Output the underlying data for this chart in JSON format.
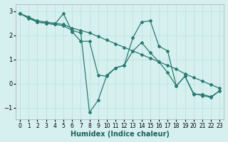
{
  "xlabel": "Humidex (Indice chaleur)",
  "bg_color": "#d6f0f0",
  "grid_color": "#b8dede",
  "line_color": "#2a7a70",
  "ylim": [
    -1.5,
    3.3
  ],
  "xlim": [
    -0.5,
    23.5
  ],
  "yticks": [
    -1,
    0,
    1,
    2,
    3
  ],
  "xticks": [
    0,
    1,
    2,
    3,
    4,
    5,
    6,
    7,
    8,
    9,
    10,
    11,
    12,
    13,
    14,
    15,
    16,
    17,
    18,
    19,
    20,
    21,
    22,
    23
  ],
  "series1_x": [
    0,
    1,
    2,
    3,
    4,
    5,
    6,
    7,
    8,
    9,
    10,
    11,
    12,
    13,
    14,
    15,
    16,
    17,
    18,
    19,
    20,
    21,
    22,
    23
  ],
  "series1_y": [
    2.9,
    2.75,
    2.6,
    2.55,
    2.5,
    2.45,
    2.3,
    2.2,
    2.1,
    1.95,
    1.8,
    1.65,
    1.5,
    1.35,
    1.2,
    1.05,
    0.9,
    0.75,
    0.6,
    0.4,
    0.25,
    0.1,
    -0.05,
    -0.2
  ],
  "series2_x": [
    0,
    1,
    2,
    3,
    4,
    5,
    6,
    7,
    8,
    9,
    10,
    11,
    12,
    13,
    14,
    15,
    16,
    17,
    18,
    19,
    20,
    21,
    22,
    23
  ],
  "series2_y": [
    2.9,
    2.75,
    2.55,
    2.5,
    2.45,
    2.9,
    2.15,
    1.75,
    1.75,
    0.35,
    0.3,
    0.65,
    0.75,
    1.9,
    2.55,
    2.6,
    1.55,
    1.35,
    -0.1,
    0.3,
    -0.45,
    -0.45,
    -0.55,
    -0.3
  ],
  "series3_x": [
    0,
    1,
    2,
    3,
    4,
    5,
    6,
    7,
    8,
    9,
    10,
    11,
    12,
    13,
    14,
    15,
    16,
    17,
    18,
    19,
    20,
    21,
    22,
    23
  ],
  "series3_y": [
    2.9,
    2.7,
    2.55,
    2.5,
    2.45,
    2.4,
    2.2,
    2.1,
    -1.2,
    -0.7,
    0.35,
    0.65,
    0.75,
    1.35,
    1.7,
    1.28,
    0.9,
    0.45,
    -0.1,
    0.3,
    -0.42,
    -0.5,
    -0.58,
    -0.3
  ]
}
